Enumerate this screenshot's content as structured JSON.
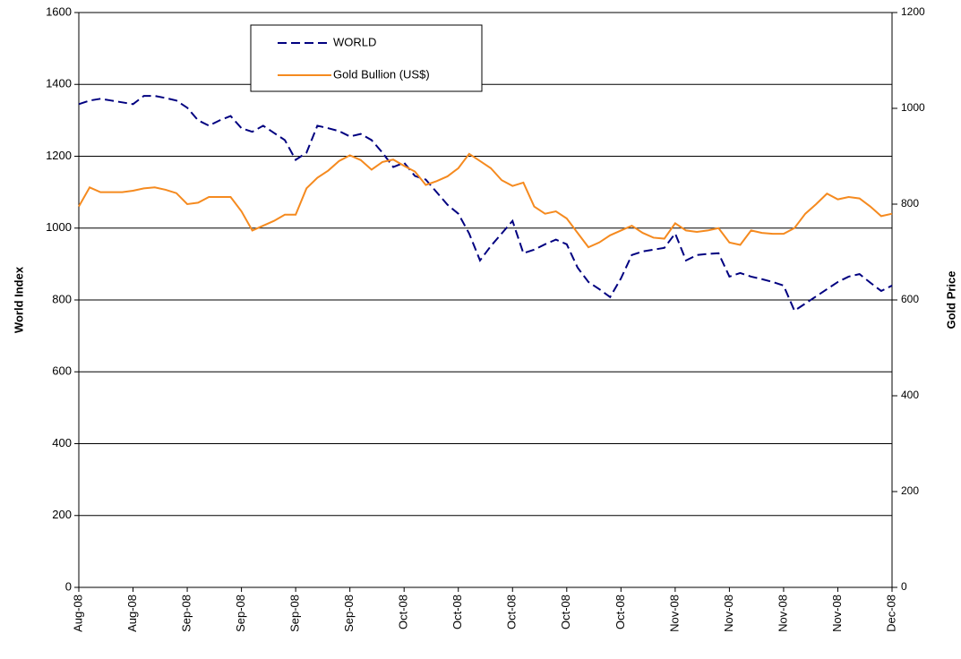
{
  "chart_data": {
    "type": "line",
    "y_label": "World Index",
    "y2_label": "Gold Price",
    "categories": [
      "Aug-08",
      null,
      null,
      null,
      null,
      "Aug-08",
      null,
      null,
      null,
      null,
      "Sep-08",
      null,
      null,
      null,
      null,
      "Sep-08",
      null,
      null,
      null,
      null,
      "Sep-08",
      null,
      null,
      null,
      null,
      "Sep-08",
      null,
      null,
      null,
      null,
      "Oct-08",
      null,
      null,
      null,
      null,
      "Oct-08",
      null,
      null,
      null,
      null,
      "Oct-08",
      null,
      null,
      null,
      null,
      "Oct-08",
      null,
      null,
      null,
      null,
      "Oct-08",
      null,
      null,
      null,
      null,
      "Nov-08",
      null,
      null,
      null,
      null,
      "Nov-08",
      null,
      null,
      null,
      null,
      "Nov-08",
      null,
      null,
      null,
      null,
      "Nov-08",
      null,
      null,
      null,
      null,
      "Dec-08"
    ],
    "series": [
      {
        "name": "WORLD",
        "color": "#000080",
        "dashed": true,
        "axis": "y",
        "values": [
          1345,
          1355,
          1360,
          1355,
          1350,
          1345,
          1368,
          1368,
          1362,
          1355,
          1335,
          1300,
          1285,
          1300,
          1312,
          1278,
          1268,
          1285,
          1265,
          1245,
          1190,
          1210,
          1285,
          1278,
          1270,
          1255,
          1262,
          1245,
          1210,
          1170,
          1182,
          1145,
          1135,
          1100,
          1065,
          1040,
          985,
          910,
          950,
          985,
          1020,
          930,
          940,
          955,
          968,
          955,
          890,
          850,
          830,
          808,
          860,
          925,
          935,
          940,
          945,
          985,
          910,
          925,
          928,
          930,
          865,
          875,
          865,
          858,
          850,
          840,
          770,
          790,
          810,
          830,
          850,
          865,
          872,
          848,
          825,
          840
        ]
      },
      {
        "name": "Gold Bullion (US$)",
        "color": "#f58a1f",
        "dashed": false,
        "axis": "y2",
        "values": [
          795,
          835,
          825,
          825,
          825,
          828,
          833,
          835,
          830,
          823,
          800,
          803,
          815,
          815,
          815,
          785,
          745,
          755,
          765,
          778,
          778,
          833,
          855,
          870,
          890,
          902,
          892,
          872,
          888,
          893,
          880,
          868,
          840,
          848,
          858,
          875,
          905,
          890,
          875,
          850,
          838,
          845,
          795,
          780,
          785,
          770,
          740,
          710,
          720,
          735,
          745,
          755,
          740,
          730,
          728,
          760,
          745,
          742,
          745,
          750,
          720,
          715,
          745,
          740,
          738,
          738,
          750,
          780,
          800,
          822,
          810,
          815,
          812,
          795,
          775,
          780
        ]
      }
    ],
    "ylim": [
      0,
      1600
    ],
    "yticks": [
      0,
      200,
      400,
      600,
      800,
      1000,
      1200,
      1400,
      1600
    ],
    "y2lim": [
      0,
      1200
    ],
    "y2ticks": [
      0,
      200,
      400,
      600,
      800,
      1000,
      1200
    ],
    "grid": true,
    "legend": "top-left"
  }
}
